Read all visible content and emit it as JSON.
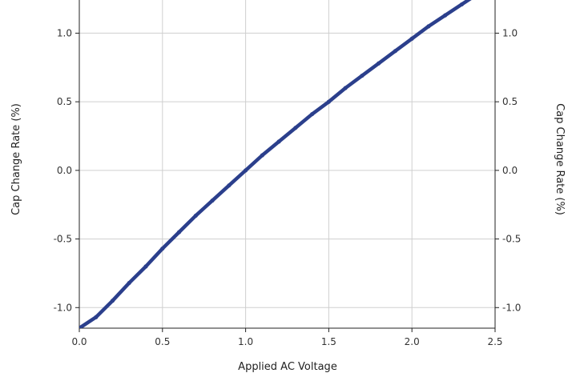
{
  "chart_data": {
    "type": "line",
    "title": "",
    "xlabel": "Applied AC Voltage",
    "ylabel": "Cap Change Rate (%)",
    "ylabel_right": "Cap Change Rate (%)",
    "xlim": [
      0.0,
      2.5
    ],
    "ylim": [
      -1.15,
      1.3
    ],
    "xticks": [
      0.0,
      0.5,
      1.0,
      1.5,
      2.0,
      2.5
    ],
    "xtick_labels": [
      "0.0",
      "0.5",
      "1.0",
      "1.5",
      "2.0",
      "2.5"
    ],
    "yticks": [
      -1.0,
      -0.5,
      0.0,
      0.5,
      1.0
    ],
    "ytick_labels": [
      "-1.0",
      "-0.5",
      "0.0",
      "0.5",
      "1.0"
    ],
    "grid": true,
    "legend": "none",
    "series": [
      {
        "color": "#2b3f8c",
        "x": [
          0.0,
          0.1,
          0.2,
          0.3,
          0.4,
          0.5,
          0.6,
          0.7,
          0.8,
          0.9,
          1.0,
          1.1,
          1.2,
          1.3,
          1.4,
          1.5,
          1.6,
          1.7,
          1.8,
          1.9,
          2.0,
          2.1,
          2.2,
          2.3,
          2.4,
          2.5
        ],
        "y": [
          -1.15,
          -1.07,
          -0.95,
          -0.82,
          -0.7,
          -0.57,
          -0.45,
          -0.33,
          -0.22,
          -0.11,
          0.0,
          0.11,
          0.21,
          0.31,
          0.41,
          0.5,
          0.6,
          0.69,
          0.78,
          0.87,
          0.96,
          1.05,
          1.13,
          1.21,
          1.29,
          1.36
        ]
      }
    ]
  }
}
